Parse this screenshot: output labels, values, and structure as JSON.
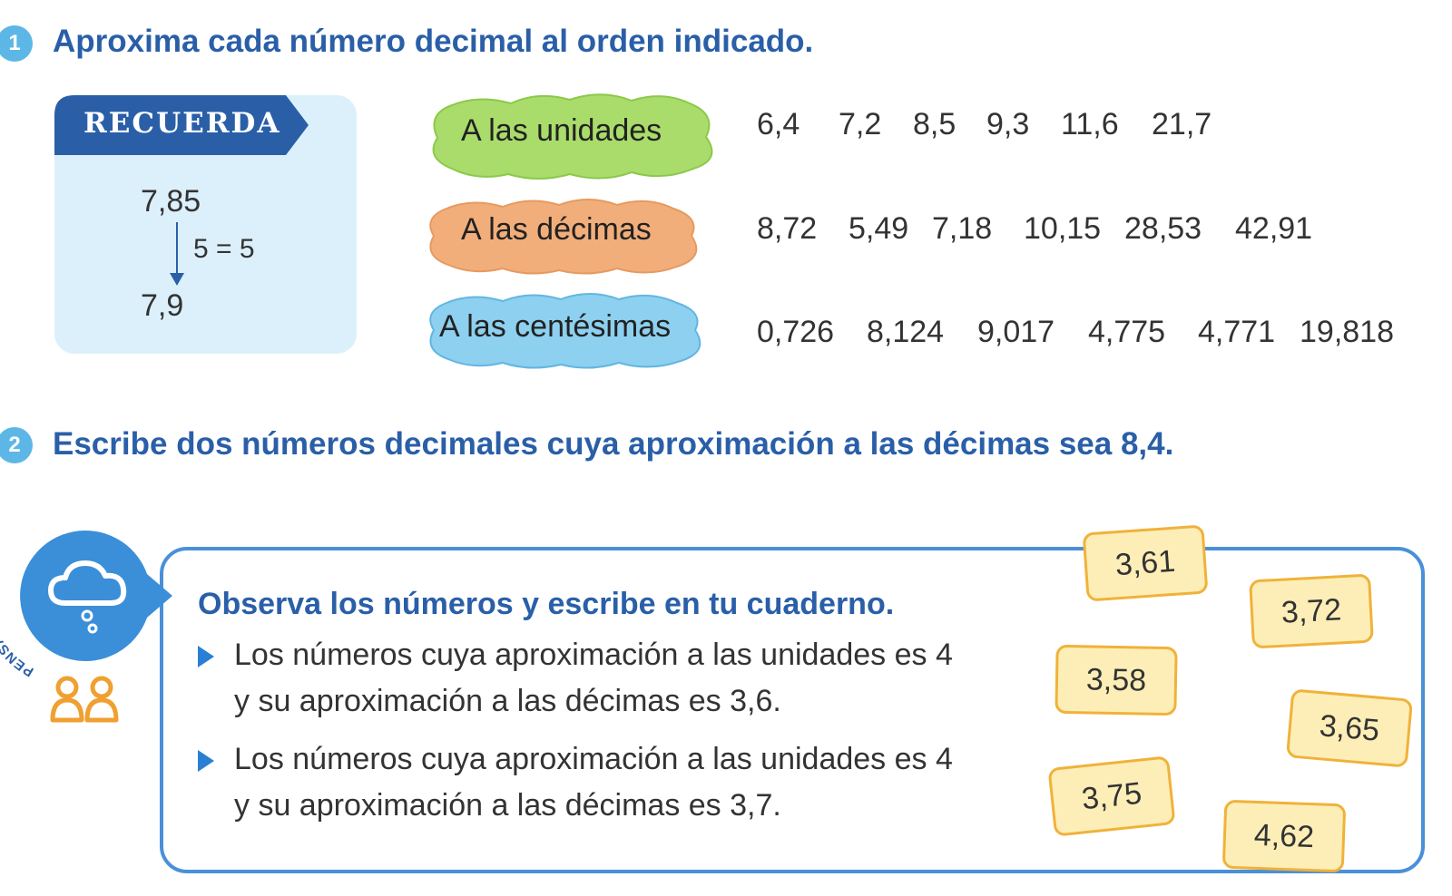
{
  "exercise1": {
    "number": "1",
    "title": "Aproxima cada número decimal al orden indicado."
  },
  "recuerda": {
    "label": "RECUERDA",
    "top_number": "7,85",
    "rule": "5 = 5",
    "result": "7,9"
  },
  "rows": [
    {
      "label": "A las unidades",
      "color": "#a9dc6a",
      "numbers": [
        "6,4",
        "7,2",
        "8,5",
        "9,3",
        "11,6",
        "21,7"
      ]
    },
    {
      "label": "A las décimas",
      "color": "#f2ae7a",
      "numbers": [
        "8,72",
        "5,49",
        "7,18",
        "10,15",
        "28,53",
        "42,91"
      ]
    },
    {
      "label": "A las centésimas",
      "color": "#8dd0ef",
      "numbers": [
        "0,726",
        "8,124",
        "9,017",
        "4,775",
        "4,771",
        "19,818"
      ]
    }
  ],
  "exercise2": {
    "number": "2",
    "title": "Escribe dos números decimales cuya aproximación a las décimas sea 8,4."
  },
  "pensamiento": {
    "badge_text": "PENSAMIENTO",
    "title": "Observa los números y escribe en tu cuaderno.",
    "bullets": [
      {
        "line1": "Los números cuya aproximación a las unidades es 4",
        "line2": "y su aproximación a las décimas es 3,6."
      },
      {
        "line1": "Los números cuya aproximación a las unidades es 4",
        "line2": "y su aproximación a las décimas es 3,7."
      }
    ],
    "cards": [
      "3,61",
      "3,72",
      "3,58",
      "3,65",
      "3,75",
      "4,62"
    ]
  },
  "colors": {
    "title_blue": "#2a5fa8",
    "circle_blue": "#5db7e6",
    "recuerda_bg": "#dcf0fb",
    "card_fill": "#fdeeb8",
    "card_border": "#f0b23a",
    "pair_icon": "#f0a030"
  },
  "icons": {
    "thought": "cloud-thought-icon",
    "pair": "pair-work-icon",
    "bullet": "triangle-bullet-icon"
  }
}
